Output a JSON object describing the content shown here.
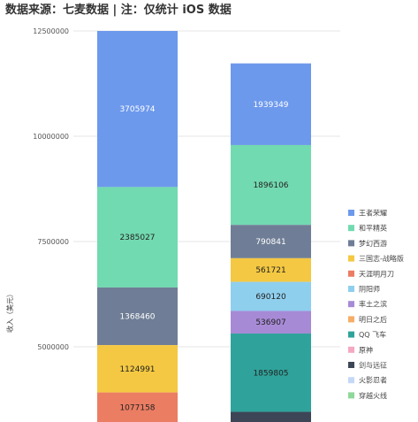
{
  "header": {
    "source_note": "数据来源：七麦数据 | 注：仅统计 iOS 数据"
  },
  "colors": {
    "王者荣耀": "#6d99ec",
    "和平精英": "#72dab0",
    "梦幻西游": "#6f7e96",
    "三国志·战略版": "#f4c842",
    "天涯明月刀": "#eb7d63",
    "阴阳师": "#8fcfee",
    "率土之滨": "#a78ad6",
    "明日之后": "#f6ad68",
    "QQ飞车": "#2fa39b",
    "原神": "#f5a7c3",
    "剑与远征": "#3d4656",
    "火影忍者": "#c6d8f8",
    "穿越火线": "#8fd89a"
  },
  "chart_data": {
    "type": "bar",
    "stacked": true,
    "ylabel": "收入（美元）",
    "ylim": [
      3500000,
      12500000
    ],
    "yticks": [
      "12500000",
      "10000000",
      "7500000",
      "5000000"
    ],
    "ytick_values": [
      12500000,
      10000000,
      7500000,
      5000000
    ],
    "grid": true,
    "legend_position": "right",
    "legend": [
      "王者荣耀",
      "和平精英",
      "梦幻西游",
      "三国志-战略版",
      "天涯明月刀",
      "阴阳师",
      "率土之滨",
      "明日之后",
      "QQ 飞车",
      "原神",
      "剑与远征",
      "火影忍者",
      "穿越火线"
    ],
    "legend_keys": [
      "王者荣耀",
      "和平精英",
      "梦幻西游",
      "三国志·战略版",
      "天涯明月刀",
      "阴阳师",
      "率土之滨",
      "明日之后",
      "QQ飞车",
      "原神",
      "剑与远征",
      "火影忍者",
      "穿越火线"
    ],
    "bars": [
      {
        "total": 12500000,
        "segments": [
          {
            "series": "王者荣耀",
            "value": 3705974,
            "label": "3705974"
          },
          {
            "series": "和平精英",
            "value": 2385027,
            "label": "2385027"
          },
          {
            "series": "梦幻西游",
            "value": 1368460,
            "label": "1368460"
          },
          {
            "series": "三国志·战略版",
            "value": 1124991,
            "label": "1124991"
          },
          {
            "series": "天涯明月刀",
            "value": 1077158,
            "label": "1077158"
          }
        ]
      },
      {
        "total": 11730000,
        "segments": [
          {
            "series": "王者荣耀",
            "value": 1939349,
            "label": "1939349"
          },
          {
            "series": "和平精英",
            "value": 1896106,
            "label": "1896106"
          },
          {
            "series": "梦幻西游",
            "value": 790841,
            "label": "790841"
          },
          {
            "series": "三国志·战略版",
            "value": 561721,
            "label": "561721"
          },
          {
            "series": "阴阳师",
            "value": 690120,
            "label": "690120"
          },
          {
            "series": "率土之滨",
            "value": 536907,
            "label": "536907"
          },
          {
            "series": "QQ飞车",
            "value": 1859805,
            "label": "1859805"
          },
          {
            "series": "剑与远征",
            "value": 300000,
            "label": ""
          }
        ]
      }
    ]
  }
}
